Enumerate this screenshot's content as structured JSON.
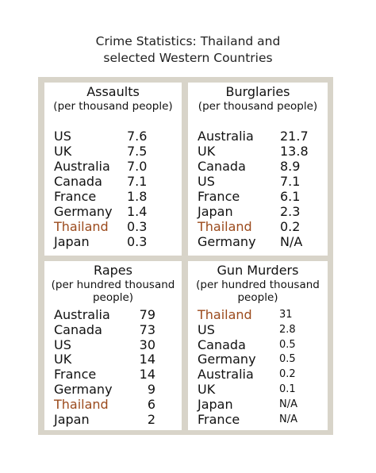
{
  "title_line1": "Crime Statistics: Thailand and",
  "title_line2": "selected Western Countries",
  "highlight_color": "#9b4a1c",
  "panels": [
    {
      "heading": "Assaults",
      "sub1": "(per thousand people)",
      "sub2": "",
      "rows": [
        {
          "country": "US",
          "value": "7.6"
        },
        {
          "country": "UK",
          "value": "7.5"
        },
        {
          "country": "Australia",
          "value": "7.0"
        },
        {
          "country": "Canada",
          "value": "7.1"
        },
        {
          "country": "France",
          "value": "1.8"
        },
        {
          "country": "Germany",
          "value": "1.4"
        },
        {
          "country": "Thailand",
          "value": "0.3"
        },
        {
          "country": "Japan",
          "value": "0.3"
        }
      ]
    },
    {
      "heading": "Burglaries",
      "sub1": "(per thousand people)",
      "sub2": "",
      "rows": [
        {
          "country": "Australia",
          "value": "21.7"
        },
        {
          "country": "UK",
          "value": "13.8"
        },
        {
          "country": "Canada",
          "value": "8.9"
        },
        {
          "country": "US",
          "value": "7.1"
        },
        {
          "country": "France",
          "value": "6.1"
        },
        {
          "country": "Japan",
          "value": "2.3"
        },
        {
          "country": "Thailand",
          "value": "0.2"
        },
        {
          "country": "Germany",
          "value": "N/A"
        }
      ]
    },
    {
      "heading": "Rapes",
      "sub1": "(per hundred thousand",
      "sub2": "people)",
      "rows": [
        {
          "country": "Australia",
          "value": "79"
        },
        {
          "country": "Canada",
          "value": "73"
        },
        {
          "country": "US",
          "value": "30"
        },
        {
          "country": "UK",
          "value": "14"
        },
        {
          "country": "France",
          "value": "14"
        },
        {
          "country": "Germany",
          "value": "9"
        },
        {
          "country": "Thailand",
          "value": "6"
        },
        {
          "country": "Japan",
          "value": "2"
        }
      ]
    },
    {
      "heading": "Gun Murders",
      "sub1": "(per hundred thousand",
      "sub2": "people)",
      "rows": [
        {
          "country": "Thailand",
          "value": "31"
        },
        {
          "country": "US",
          "value": "2.8"
        },
        {
          "country": "Canada",
          "value": "0.5"
        },
        {
          "country": "Germany",
          "value": "0.5"
        },
        {
          "country": "Australia",
          "value": "0.2"
        },
        {
          "country": "UK",
          "value": "0.1"
        },
        {
          "country": "Japan",
          "value": "N/A"
        },
        {
          "country": "France",
          "value": "N/A"
        }
      ]
    }
  ]
}
